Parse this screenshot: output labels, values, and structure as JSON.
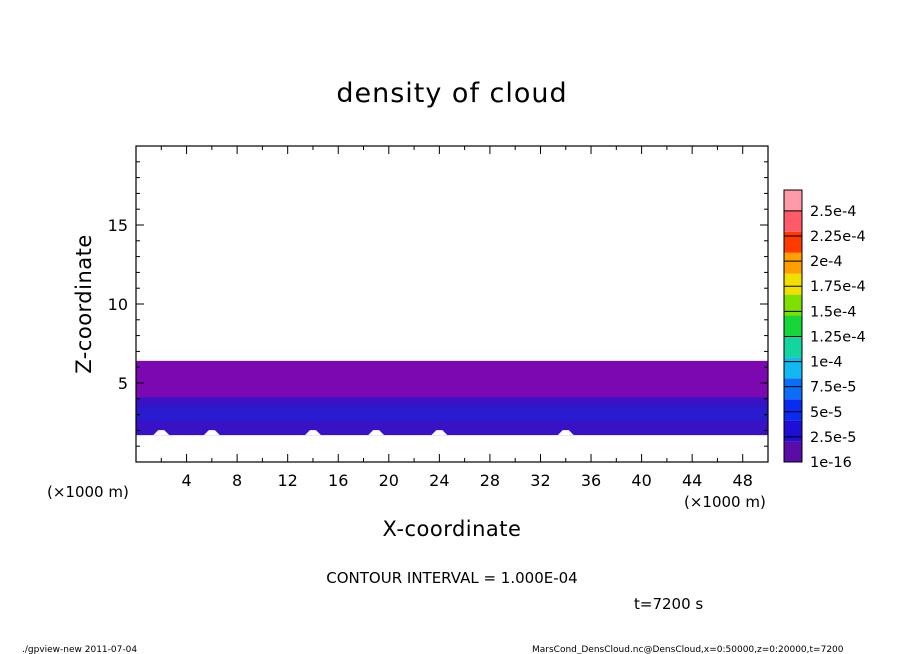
{
  "chart_data": {
    "type": "heatmap",
    "title": "density of cloud",
    "xlabel": "X-coordinate",
    "ylabel": "Z-coordinate",
    "x_unit_left": "(×1000 m)",
    "x_unit_right": "(×1000 m)",
    "xlim": [
      0,
      50
    ],
    "ylim": [
      0,
      20
    ],
    "x_ticks": [
      4,
      8,
      12,
      16,
      20,
      24,
      28,
      32,
      36,
      40,
      44,
      48
    ],
    "y_ticks": [
      5,
      10,
      15
    ],
    "colorbar": {
      "labels": [
        "1e-16",
        "2.5e-5",
        "5e-5",
        "7.5e-5",
        "1e-4",
        "1.25e-4",
        "1.5e-4",
        "1.75e-4",
        "2e-4",
        "2.25e-4",
        "2.5e-4"
      ],
      "colors": [
        "#5a0ca6",
        "#1e0fd6",
        "#0a2cf0",
        "#0a6ef8",
        "#12b8f0",
        "#12d6a0",
        "#16d63a",
        "#7fe000",
        "#f0e000",
        "#ffa000",
        "#ff3a00",
        "#ff5a6a",
        "#ff9aa8"
      ]
    },
    "layers": [
      {
        "level": "1e-16",
        "z_from": 2.7,
        "z_to": 6.4
      },
      {
        "level": "2.5e-5",
        "z_from": 1.7,
        "z_to": 4.1
      },
      {
        "level": "5e-5",
        "z_from": 2.6,
        "z_to": 3.5
      }
    ],
    "layer_colors": [
      "#7b08b0",
      "#3a12c6",
      "#2a1ad0"
    ],
    "white_bottom_z": 1.7,
    "contour_interval": "CONTOUR INTERVAL = 1.000E-04",
    "time": "t=7200 s"
  },
  "footer": {
    "left": "./gpview-new  2011-07-04",
    "right": "MarsCond_DensCloud.nc@DensCloud,x=0:50000,z=0:20000,t=7200"
  }
}
